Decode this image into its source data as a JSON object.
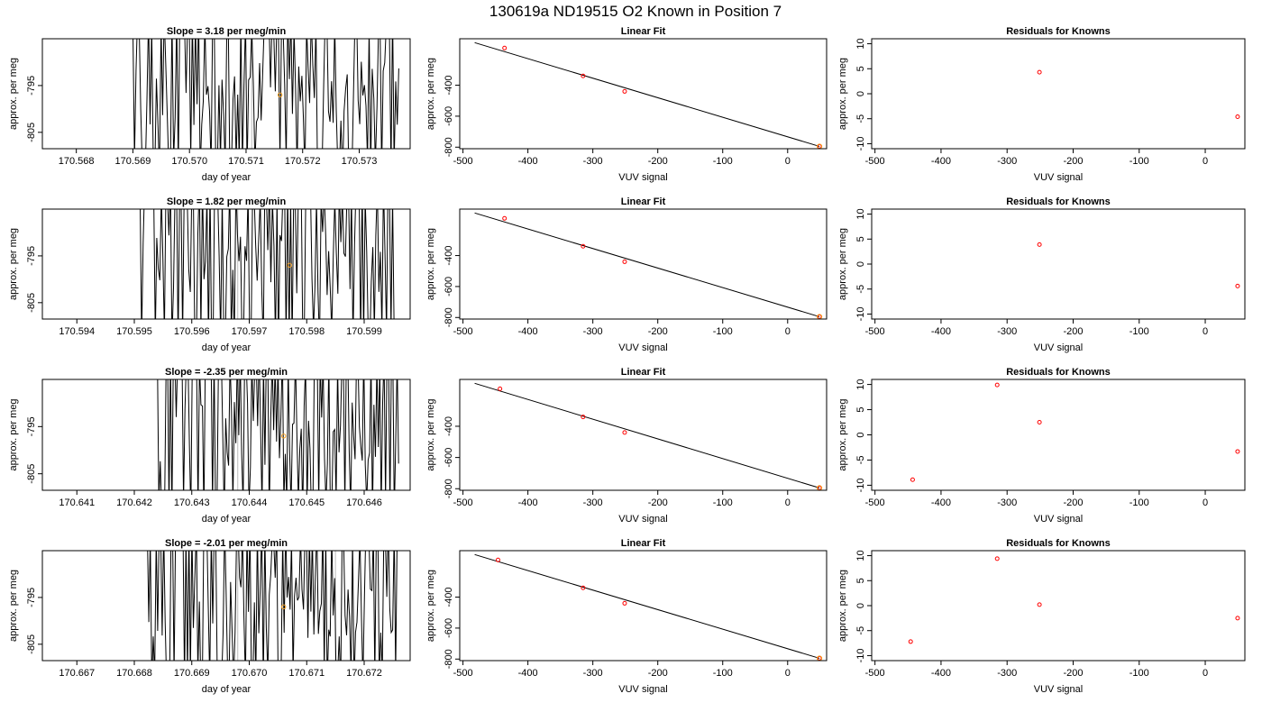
{
  "page_title": "130619a     ND19515   O2 Known in Position  7",
  "chart_data": [
    {
      "type": "line",
      "title": "Slope =  3.18  per meg/min",
      "xlabel": "day of year",
      "ylabel": "approx. per meg",
      "xlim": [
        170.5674,
        170.5739
      ],
      "ylim": [
        -808.5,
        -785
      ],
      "x_ticks": [
        "170.568",
        "170.569",
        "170.570",
        "170.571",
        "170.572",
        "170.573"
      ],
      "x_tick_values": [
        170.568,
        170.569,
        170.57,
        170.571,
        170.572,
        170.573
      ],
      "y_ticks": [
        "-805",
        "-795"
      ],
      "y_tick_values": [
        -805,
        -795
      ],
      "trace_x_range": [
        170.569,
        170.5737
      ],
      "seed": 11,
      "marker": {
        "x": 170.5716,
        "y": -797
      },
      "gray_lines_x": [
        170.5711
      ],
      "color_trace": "#000000",
      "color_marker": "#f5a020",
      "color_gray": "#bbbbbb"
    },
    {
      "type": "scatter",
      "title": "Linear Fit",
      "xlabel": "VUV signal",
      "ylabel": "approx. per meg",
      "xlim": [
        -505,
        60
      ],
      "ylim": [
        -810,
        -100
      ],
      "x_ticks": [
        "-500",
        "-400",
        "-300",
        "-200",
        "-100",
        "0"
      ],
      "x_tick_values": [
        -500,
        -400,
        -300,
        -200,
        -100,
        0
      ],
      "y_ticks": [
        "-800",
        "-600",
        "-400"
      ],
      "y_tick_values": [
        -800,
        -600,
        -400
      ],
      "points": [
        [
          -436,
          -160
        ],
        [
          -315,
          -340
        ],
        [
          -251,
          -440
        ],
        [
          49,
          -795
        ]
      ],
      "fit_line": [
        [
          -482,
          -125
        ],
        [
          49,
          -795
        ]
      ],
      "color_points": "#ff0000",
      "color_last": "#f5a020"
    },
    {
      "type": "scatter",
      "title": "Residuals for Knowns",
      "xlabel": "VUV signal",
      "ylabel": "approx. per meg",
      "xlim": [
        -505,
        60
      ],
      "ylim": [
        -11,
        11
      ],
      "x_ticks": [
        "-500",
        "-400",
        "-300",
        "-200",
        "-100",
        "0"
      ],
      "x_tick_values": [
        -500,
        -400,
        -300,
        -200,
        -100,
        0
      ],
      "y_ticks": [
        "-10",
        "-5",
        "0",
        "5",
        "10"
      ],
      "y_tick_values": [
        -10,
        -5,
        0,
        5,
        10
      ],
      "points": [
        [
          -251,
          4.3
        ],
        [
          49,
          -4.6
        ]
      ],
      "color_points": "#ff0000"
    },
    {
      "type": "line",
      "title": "Slope =  1.82  per meg/min",
      "xlabel": "day of year",
      "ylabel": "approx. per meg",
      "xlim": [
        170.5934,
        170.5998
      ],
      "ylim": [
        -808.5,
        -785
      ],
      "x_ticks": [
        "170.594",
        "170.595",
        "170.596",
        "170.597",
        "170.598",
        "170.599"
      ],
      "x_tick_values": [
        170.594,
        170.595,
        170.596,
        170.597,
        170.598,
        170.599
      ],
      "y_ticks": [
        "-805",
        "-795"
      ],
      "y_tick_values": [
        -805,
        -795
      ],
      "trace_x_range": [
        170.5951,
        170.5996
      ],
      "seed": 23,
      "marker": {
        "x": 170.5977,
        "y": -797
      },
      "gray_lines_x": [
        170.5968
      ],
      "color_trace": "#000000",
      "color_marker": "#f5a020",
      "color_gray": "#bbbbbb"
    },
    {
      "type": "scatter",
      "title": "Linear Fit",
      "xlabel": "VUV signal",
      "ylabel": "approx. per meg",
      "xlim": [
        -505,
        60
      ],
      "ylim": [
        -810,
        -100
      ],
      "x_ticks": [
        "-500",
        "-400",
        "-300",
        "-200",
        "-100",
        "0"
      ],
      "x_tick_values": [
        -500,
        -400,
        -300,
        -200,
        -100,
        0
      ],
      "y_ticks": [
        "-800",
        "-600",
        "-400"
      ],
      "y_tick_values": [
        -800,
        -600,
        -400
      ],
      "points": [
        [
          -436,
          -160
        ],
        [
          -315,
          -340
        ],
        [
          -251,
          -440
        ],
        [
          49,
          -795
        ]
      ],
      "fit_line": [
        [
          -482,
          -125
        ],
        [
          49,
          -795
        ]
      ],
      "color_points": "#ff0000",
      "color_last": "#f5a020"
    },
    {
      "type": "scatter",
      "title": "Residuals for Knowns",
      "xlabel": "VUV signal",
      "ylabel": "approx. per meg",
      "xlim": [
        -505,
        60
      ],
      "ylim": [
        -11,
        11
      ],
      "x_ticks": [
        "-500",
        "-400",
        "-300",
        "-200",
        "-100",
        "0"
      ],
      "x_tick_values": [
        -500,
        -400,
        -300,
        -200,
        -100,
        0
      ],
      "y_ticks": [
        "-10",
        "-5",
        "0",
        "5",
        "10"
      ],
      "y_tick_values": [
        -10,
        -5,
        0,
        5,
        10
      ],
      "points": [
        [
          -251,
          3.9
        ],
        [
          49,
          -4.4
        ]
      ],
      "color_points": "#ff0000"
    },
    {
      "type": "line",
      "title": "Slope =  -2.35  per meg/min",
      "xlabel": "day of year",
      "ylabel": "approx. per meg",
      "xlim": [
        170.6404,
        170.6468
      ],
      "ylim": [
        -808.5,
        -785
      ],
      "x_ticks": [
        "170.641",
        "170.642",
        "170.643",
        "170.644",
        "170.645",
        "170.646"
      ],
      "x_tick_values": [
        170.641,
        170.642,
        170.643,
        170.644,
        170.645,
        170.646
      ],
      "y_ticks": [
        "-805",
        "-795"
      ],
      "y_tick_values": [
        -805,
        -795
      ],
      "trace_x_range": [
        170.6423,
        170.6466
      ],
      "seed": 37,
      "marker": {
        "x": 170.6446,
        "y": -797
      },
      "gray_lines_x": [
        170.6438
      ],
      "color_trace": "#000000",
      "color_marker": "#f5a020",
      "color_gray": "#bbbbbb"
    },
    {
      "type": "scatter",
      "title": "Linear Fit",
      "xlabel": "VUV signal",
      "ylabel": "approx. per meg",
      "xlim": [
        -505,
        60
      ],
      "ylim": [
        -810,
        -100
      ],
      "x_ticks": [
        "-500",
        "-400",
        "-300",
        "-200",
        "-100",
        "0"
      ],
      "x_tick_values": [
        -500,
        -400,
        -300,
        -200,
        -100,
        0
      ],
      "y_ticks": [
        "-800",
        "-600",
        "-400"
      ],
      "y_tick_values": [
        -800,
        -600,
        -400
      ],
      "points": [
        [
          -443,
          -160
        ],
        [
          -315,
          -340
        ],
        [
          -251,
          -440
        ],
        [
          49,
          -795
        ]
      ],
      "fit_line": [
        [
          -482,
          -125
        ],
        [
          49,
          -795
        ]
      ],
      "color_points": "#ff0000",
      "color_last": "#f5a020"
    },
    {
      "type": "scatter",
      "title": "Residuals for Knowns",
      "xlabel": "VUV signal",
      "ylabel": "approx. per meg",
      "xlim": [
        -505,
        60
      ],
      "ylim": [
        -11,
        11
      ],
      "x_ticks": [
        "-500",
        "-400",
        "-300",
        "-200",
        "-100",
        "0"
      ],
      "x_tick_values": [
        -500,
        -400,
        -300,
        -200,
        -100,
        0
      ],
      "y_ticks": [
        "-10",
        "-5",
        "0",
        "5",
        "10"
      ],
      "y_tick_values": [
        -10,
        -5,
        0,
        5,
        10
      ],
      "points": [
        [
          -443,
          -8.9
        ],
        [
          -315,
          9.9
        ],
        [
          -251,
          2.5
        ],
        [
          49,
          -3.3
        ]
      ],
      "color_points": "#ff0000"
    },
    {
      "type": "line",
      "title": "Slope =  -2.01  per meg/min",
      "xlabel": "day of year",
      "ylabel": "approx. per meg",
      "xlim": [
        170.6664,
        170.6728
      ],
      "ylim": [
        -808.5,
        -785
      ],
      "x_ticks": [
        "170.667",
        "170.668",
        "170.669",
        "170.670",
        "170.671",
        "170.672"
      ],
      "x_tick_values": [
        170.667,
        170.668,
        170.669,
        170.67,
        170.671,
        170.672
      ],
      "y_ticks": [
        "-805",
        "-795"
      ],
      "y_tick_values": [
        -805,
        -795
      ],
      "trace_x_range": [
        170.6682,
        170.6726
      ],
      "seed": 53,
      "marker": {
        "x": 170.6706,
        "y": -797
      },
      "gray_lines_x": [
        170.6698,
        170.6715
      ],
      "color_trace": "#000000",
      "color_marker": "#f5a020",
      "color_gray": "#bbbbbb"
    },
    {
      "type": "scatter",
      "title": "Linear Fit",
      "xlabel": "VUV signal",
      "ylabel": "approx. per meg",
      "xlim": [
        -505,
        60
      ],
      "ylim": [
        -810,
        -100
      ],
      "x_ticks": [
        "-500",
        "-400",
        "-300",
        "-200",
        "-100",
        "0"
      ],
      "x_tick_values": [
        -500,
        -400,
        -300,
        -200,
        -100,
        0
      ],
      "y_ticks": [
        "-800",
        "-600",
        "-400"
      ],
      "y_tick_values": [
        -800,
        -600,
        -400
      ],
      "points": [
        [
          -446,
          -160
        ],
        [
          -315,
          -340
        ],
        [
          -251,
          -440
        ],
        [
          49,
          -795
        ]
      ],
      "fit_line": [
        [
          -482,
          -125
        ],
        [
          49,
          -795
        ]
      ],
      "color_points": "#ff0000",
      "color_last": "#f5a020"
    },
    {
      "type": "scatter",
      "title": "Residuals for Knowns",
      "xlabel": "VUV signal",
      "ylabel": "approx. per meg",
      "xlim": [
        -505,
        60
      ],
      "ylim": [
        -11,
        11
      ],
      "x_ticks": [
        "-500",
        "-400",
        "-300",
        "-200",
        "-100",
        "0"
      ],
      "x_tick_values": [
        -500,
        -400,
        -300,
        -200,
        -100,
        0
      ],
      "y_ticks": [
        "-10",
        "-5",
        "0",
        "5",
        "10"
      ],
      "y_tick_values": [
        -10,
        -5,
        0,
        5,
        10
      ],
      "points": [
        [
          -446,
          -7.2
        ],
        [
          -315,
          9.4
        ],
        [
          -251,
          0.2
        ],
        [
          49,
          -2.5
        ]
      ],
      "color_points": "#ff0000"
    }
  ]
}
